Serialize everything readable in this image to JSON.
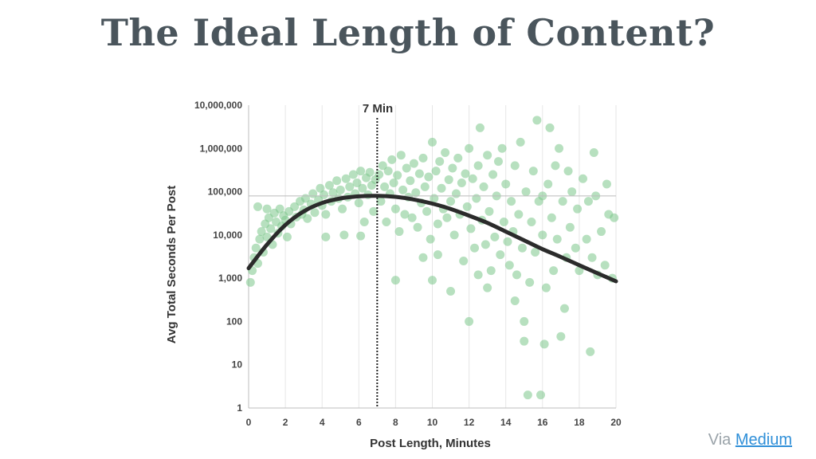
{
  "title": "The Ideal Length of Content?",
  "credit": {
    "prefix": "Via",
    "link_text": "Medium"
  },
  "colors": {
    "title": "#4a555c",
    "scatter": "#7cc68b",
    "curve": "#2b2b2b",
    "link": "#2f8fd8"
  },
  "chart_data": {
    "type": "scatter",
    "title": "",
    "xlabel": "Post Length, Minutes",
    "ylabel": "Avg Total Seconds Per Post",
    "x_ticks": [
      "0",
      "2",
      "4",
      "6",
      "8",
      "10",
      "12",
      "14",
      "16",
      "18",
      "20"
    ],
    "y_ticks": [
      "1",
      "10",
      "100",
      "1,000",
      "10,000",
      "100,000",
      "1,000,000",
      "10,000,000"
    ],
    "xlim": [
      0,
      20
    ],
    "ylim": [
      1,
      10000000
    ],
    "y_scale": "log",
    "grid": "vertical",
    "annotation": {
      "label": "7 Min",
      "x": 7,
      "style": "dotted vertical line"
    },
    "reference_line_y": 80000,
    "trend_curve": [
      [
        0,
        1700
      ],
      [
        1,
        6000
      ],
      [
        2,
        17000
      ],
      [
        3,
        35000
      ],
      [
        4,
        55000
      ],
      [
        5,
        70000
      ],
      [
        6,
        78000
      ],
      [
        7,
        80000
      ],
      [
        8,
        76000
      ],
      [
        9,
        66000
      ],
      [
        10,
        53000
      ],
      [
        11,
        40000
      ],
      [
        12,
        28000
      ],
      [
        13,
        19000
      ],
      [
        14,
        12000
      ],
      [
        15,
        7500
      ],
      [
        16,
        4700
      ],
      [
        17,
        3100
      ],
      [
        18,
        2000
      ],
      [
        19,
        1300
      ],
      [
        20,
        850
      ]
    ],
    "scatter_points": [
      [
        0.1,
        800
      ],
      [
        0.2,
        1500
      ],
      [
        0.3,
        3000
      ],
      [
        0.4,
        5000
      ],
      [
        0.5,
        2200
      ],
      [
        0.6,
        8000
      ],
      [
        0.7,
        12000
      ],
      [
        0.8,
        4000
      ],
      [
        0.9,
        18000
      ],
      [
        1.0,
        9000
      ],
      [
        1.1,
        25000
      ],
      [
        1.2,
        14000
      ],
      [
        1.3,
        6000
      ],
      [
        1.4,
        32000
      ],
      [
        1.5,
        20000
      ],
      [
        1.6,
        11000
      ],
      [
        1.7,
        40000
      ],
      [
        1.8,
        16000
      ],
      [
        1.9,
        28000
      ],
      [
        2.0,
        22000
      ],
      [
        2.1,
        9000
      ],
      [
        2.2,
        35000
      ],
      [
        2.3,
        18000
      ],
      [
        2.5,
        45000
      ],
      [
        2.6,
        26000
      ],
      [
        2.8,
        60000
      ],
      [
        2.9,
        30000
      ],
      [
        3.0,
        38000
      ],
      [
        3.1,
        70000
      ],
      [
        3.2,
        24000
      ],
      [
        3.4,
        52000
      ],
      [
        3.5,
        90000
      ],
      [
        3.6,
        33000
      ],
      [
        3.8,
        65000
      ],
      [
        3.9,
        120000
      ],
      [
        4.0,
        48000
      ],
      [
        4.1,
        85000
      ],
      [
        4.2,
        30000
      ],
      [
        4.4,
        140000
      ],
      [
        4.5,
        60000
      ],
      [
        4.6,
        95000
      ],
      [
        4.8,
        180000
      ],
      [
        4.9,
        70000
      ],
      [
        5.0,
        110000
      ],
      [
        5.1,
        40000
      ],
      [
        5.3,
        200000
      ],
      [
        5.4,
        75000
      ],
      [
        5.5,
        130000
      ],
      [
        5.7,
        250000
      ],
      [
        5.8,
        90000
      ],
      [
        5.9,
        160000
      ],
      [
        6.0,
        55000
      ],
      [
        6.1,
        300000
      ],
      [
        6.2,
        120000
      ],
      [
        6.3,
        20000
      ],
      [
        6.4,
        210000
      ],
      [
        6.5,
        85000
      ],
      [
        6.6,
        280000
      ],
      [
        6.7,
        140000
      ],
      [
        6.8,
        35000
      ],
      [
        6.9,
        190000
      ],
      [
        4.2,
        9000
      ],
      [
        5.2,
        10000
      ],
      [
        6.1,
        9500
      ],
      [
        0.5,
        45000
      ],
      [
        1.0,
        40000
      ],
      [
        7.1,
        250000
      ],
      [
        7.2,
        60000
      ],
      [
        7.3,
        400000
      ],
      [
        7.4,
        130000
      ],
      [
        7.5,
        20000
      ],
      [
        7.6,
        300000
      ],
      [
        7.7,
        90000
      ],
      [
        7.8,
        550000
      ],
      [
        7.9,
        160000
      ],
      [
        8.0,
        40000
      ],
      [
        8.1,
        240000
      ],
      [
        8.2,
        12000
      ],
      [
        8.3,
        700000
      ],
      [
        8.4,
        110000
      ],
      [
        8.5,
        30000
      ],
      [
        8.6,
        350000
      ],
      [
        8.7,
        75000
      ],
      [
        8.8,
        180000
      ],
      [
        8.9,
        25000
      ],
      [
        9.0,
        450000
      ],
      [
        9.1,
        95000
      ],
      [
        9.2,
        15000
      ],
      [
        9.3,
        260000
      ],
      [
        9.4,
        55000
      ],
      [
        9.5,
        600000
      ],
      [
        9.6,
        130000
      ],
      [
        9.7,
        35000
      ],
      [
        9.8,
        220000
      ],
      [
        9.9,
        8000
      ],
      [
        10.0,
        1400000
      ],
      [
        10.1,
        70000
      ],
      [
        10.2,
        300000
      ],
      [
        10.3,
        18000
      ],
      [
        10.4,
        500000
      ],
      [
        10.5,
        120000
      ],
      [
        10.6,
        40000
      ],
      [
        10.7,
        800000
      ],
      [
        10.8,
        25000
      ],
      [
        10.9,
        190000
      ],
      [
        11.0,
        60000
      ],
      [
        11.1,
        350000
      ],
      [
        11.2,
        10000
      ],
      [
        11.3,
        90000
      ],
      [
        11.4,
        600000
      ],
      [
        11.5,
        30000
      ],
      [
        11.6,
        160000
      ],
      [
        11.7,
        2500
      ],
      [
        11.8,
        260000
      ],
      [
        11.9,
        45000
      ],
      [
        12.0,
        1000000
      ],
      [
        12.1,
        14000
      ],
      [
        12.2,
        200000
      ],
      [
        12.3,
        5000
      ],
      [
        12.4,
        70000
      ],
      [
        12.5,
        400000
      ],
      [
        12.6,
        3000000
      ],
      [
        12.7,
        22000
      ],
      [
        12.8,
        130000
      ],
      [
        12.9,
        6000
      ],
      [
        13.0,
        700000
      ],
      [
        13.1,
        35000
      ],
      [
        13.2,
        1500
      ],
      [
        13.3,
        250000
      ],
      [
        13.4,
        9000
      ],
      [
        13.5,
        80000
      ],
      [
        13.6,
        500000
      ],
      [
        13.7,
        3500
      ],
      [
        13.8,
        1000000
      ],
      [
        13.9,
        20000
      ],
      [
        14.0,
        150000
      ],
      [
        14.1,
        7000
      ],
      [
        14.2,
        2000
      ],
      [
        14.3,
        60000
      ],
      [
        14.4,
        12000
      ],
      [
        14.5,
        400000
      ],
      [
        14.6,
        1200
      ],
      [
        14.7,
        30000
      ],
      [
        14.8,
        1400000
      ],
      [
        14.9,
        5000
      ],
      [
        15.0,
        35
      ],
      [
        15.1,
        100000
      ],
      [
        15.2,
        2
      ],
      [
        15.3,
        800
      ],
      [
        15.4,
        20000
      ],
      [
        15.5,
        300000
      ],
      [
        15.6,
        4000
      ],
      [
        15.7,
        4500000
      ],
      [
        15.8,
        60000
      ],
      [
        15.9,
        2
      ],
      [
        16.0,
        10000
      ],
      [
        16.1,
        30
      ],
      [
        16.2,
        600
      ],
      [
        16.3,
        150000
      ],
      [
        16.4,
        3000000
      ],
      [
        16.5,
        25000
      ],
      [
        16.6,
        1500
      ],
      [
        16.7,
        400000
      ],
      [
        16.8,
        8000
      ],
      [
        16.9,
        1000000
      ],
      [
        17.0,
        45
      ],
      [
        17.1,
        60000
      ],
      [
        17.2,
        200
      ],
      [
        17.3,
        3000
      ],
      [
        17.4,
        300000
      ],
      [
        17.5,
        15000
      ],
      [
        17.6,
        100000
      ],
      [
        17.8,
        5000
      ],
      [
        17.9,
        40000
      ],
      [
        18.0,
        1500
      ],
      [
        18.2,
        200000
      ],
      [
        18.4,
        8000
      ],
      [
        18.5,
        60000
      ],
      [
        18.6,
        20
      ],
      [
        18.7,
        3000
      ],
      [
        18.8,
        800000
      ],
      [
        18.9,
        80000
      ],
      [
        19.0,
        1200
      ],
      [
        19.2,
        12000
      ],
      [
        19.4,
        2000
      ],
      [
        19.5,
        150000
      ],
      [
        19.6,
        30000
      ],
      [
        19.8,
        1000
      ],
      [
        19.9,
        25000
      ],
      [
        16.0,
        80000
      ],
      [
        15.0,
        100
      ],
      [
        14.5,
        300
      ],
      [
        13.0,
        600
      ],
      [
        12.0,
        100
      ],
      [
        11.0,
        500
      ],
      [
        10.0,
        900
      ],
      [
        8.0,
        900
      ],
      [
        9.5,
        3000
      ],
      [
        10.3,
        3500
      ],
      [
        12.5,
        1200
      ]
    ]
  }
}
